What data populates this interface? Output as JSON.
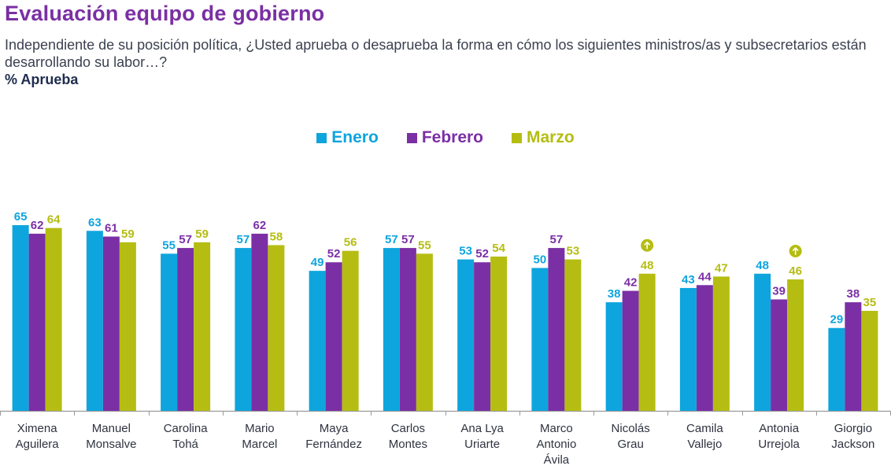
{
  "header": {
    "title": "Evaluación equipo de gobierno",
    "subtitle": "Independiente de su posición política, ¿Usted aprueba o desaprueba la forma en cómo los siguientes ministros/as y subsecretarios están desarrollando su labor…?",
    "measure": "% Aprueba"
  },
  "colors": {
    "title": "#7a2fa3",
    "enero": "#0ea5de",
    "febrero": "#7b2fa5",
    "marzo": "#b5bd12"
  },
  "chart_data": {
    "type": "bar",
    "title": "Evaluación equipo de gobierno",
    "ylabel": "% Aprueba",
    "xlabel": "",
    "ylim": [
      0,
      70
    ],
    "grid": false,
    "legend_position": "top-center",
    "categories": [
      [
        "Ximena",
        "Aguilera"
      ],
      [
        "Manuel",
        "Monsalve"
      ],
      [
        "Carolina",
        "Tohá"
      ],
      [
        "Mario",
        "Marcel"
      ],
      [
        "Maya",
        "Fernández"
      ],
      [
        "Carlos",
        "Montes"
      ],
      [
        "Ana Lya",
        "Uriarte"
      ],
      [
        "Marco",
        "Antonio",
        "Ávila"
      ],
      [
        "Nicolás",
        "Grau"
      ],
      [
        "Camila",
        "Vallejo"
      ],
      [
        "Antonia",
        "Urrejola"
      ],
      [
        "Giorgio",
        "Jackson"
      ]
    ],
    "series": [
      {
        "name": "Enero",
        "color": "#0ea5de",
        "values": [
          65,
          63,
          55,
          57,
          49,
          57,
          53,
          50,
          38,
          43,
          48,
          29
        ]
      },
      {
        "name": "Febrero",
        "color": "#7b2fa5",
        "values": [
          62,
          61,
          57,
          62,
          52,
          57,
          52,
          57,
          42,
          44,
          39,
          38
        ]
      },
      {
        "name": "Marzo",
        "color": "#b5bd12",
        "values": [
          64,
          59,
          59,
          58,
          56,
          55,
          54,
          53,
          48,
          47,
          46,
          35
        ]
      }
    ],
    "annotations": [
      {
        "category_index": 8,
        "series": "Marzo",
        "icon": "arrow-up-circle-icon",
        "meaning": "significant increase"
      },
      {
        "category_index": 10,
        "series": "Marzo",
        "icon": "arrow-up-circle-icon",
        "meaning": "significant increase"
      }
    ]
  }
}
